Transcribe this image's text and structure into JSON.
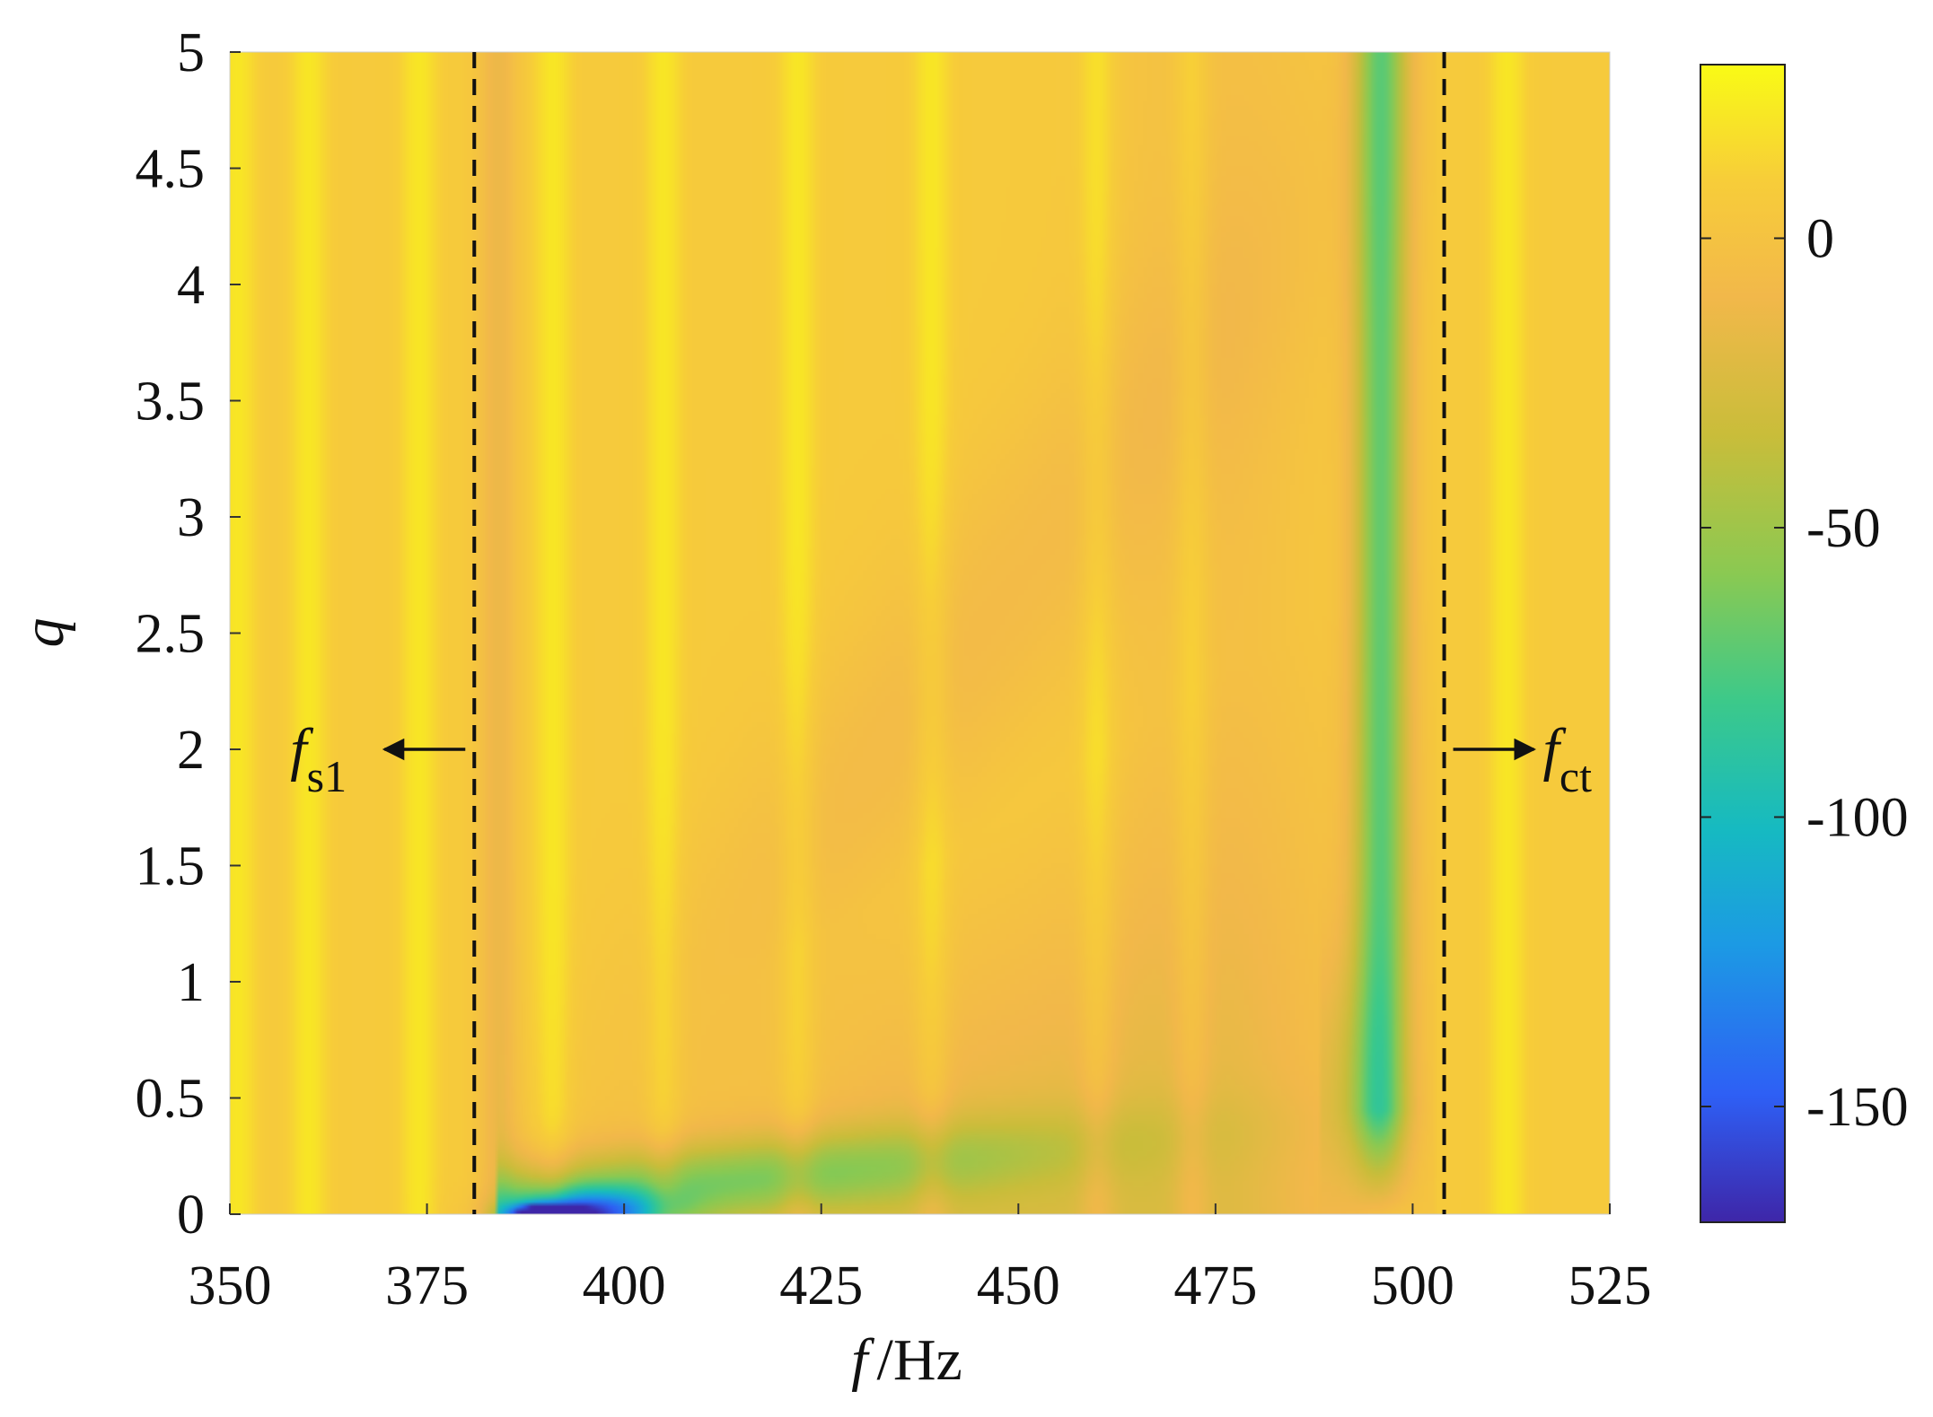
{
  "chart_data": {
    "type": "heatmap",
    "xlabel": {
      "symbol": "f",
      "unit": "/Hz"
    },
    "ylabel": "q",
    "xlim": [
      350,
      525
    ],
    "ylim": [
      0,
      5
    ],
    "x_ticks": [
      "350",
      "375",
      "400",
      "425",
      "450",
      "475",
      "500",
      "525"
    ],
    "y_ticks": [
      "0",
      "0.5",
      "1",
      "1.5",
      "2",
      "2.5",
      "3",
      "3.5",
      "4",
      "4.5",
      "5"
    ],
    "colorbar": {
      "range": [
        -170,
        30
      ],
      "ticks": [
        "0",
        "-50",
        "-100",
        "-150"
      ],
      "colormap": [
        "#3e26a8",
        "#2e5ff5",
        "#1c9ae4",
        "#16bac1",
        "#3cc98a",
        "#8ac952",
        "#c9bd3a",
        "#f2b84a",
        "#f7cd39",
        "#f9fb15"
      ]
    },
    "grid": false,
    "reference_lines": [
      {
        "x": 381,
        "style": "dashed",
        "label": "f",
        "subscript": "s1",
        "arrow": "left"
      },
      {
        "x": 504,
        "style": "dashed",
        "label": "f",
        "subscript": "ct",
        "arrow": "right"
      }
    ],
    "features": [
      {
        "description_value": "dip band",
        "f_range": [
          381,
          387
        ],
        "q_range": [
          0,
          5
        ],
        "value": -15
      },
      {
        "description_value": "deep dip",
        "f_range": [
          493,
          499
        ],
        "q_range": [
          0,
          5
        ],
        "value": -70
      },
      {
        "description_value": "minimum",
        "f": 390,
        "q": 0.02,
        "value": -165
      },
      {
        "description_value": "bright ridges",
        "f": [
          351,
          360,
          374,
          391,
          405,
          422,
          439,
          460,
          472,
          512
        ],
        "value": 25
      }
    ]
  }
}
